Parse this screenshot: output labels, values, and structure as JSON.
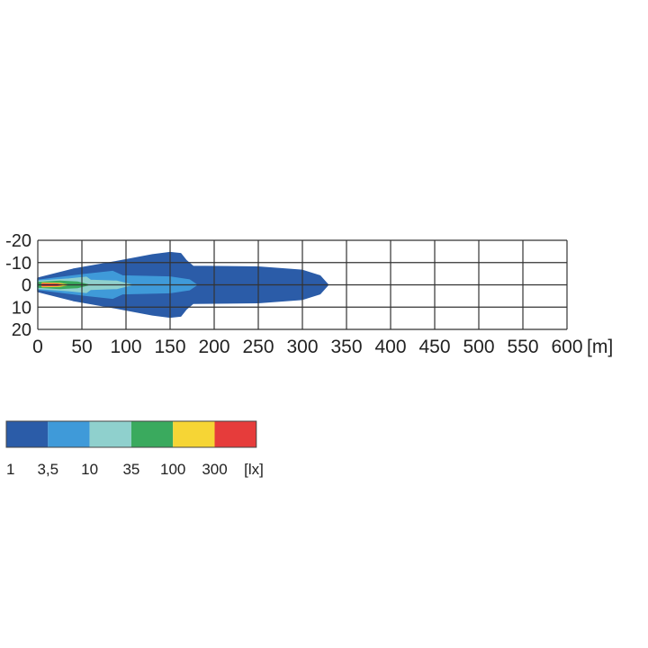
{
  "chart_data": {
    "type": "isolux-contour",
    "x_axis": {
      "range": [
        0,
        600
      ],
      "ticks": [
        "0",
        "50",
        "100",
        "150",
        "200",
        "250",
        "300",
        "350",
        "400",
        "450",
        "500",
        "550",
        "600"
      ],
      "unit": "[m]"
    },
    "y_axis": {
      "range": [
        -20,
        20
      ],
      "ticks": [
        "-20",
        "-10",
        "0",
        "10",
        "20"
      ]
    },
    "grid": true,
    "contours": [
      {
        "level": "1",
        "color": "#2b5ca8",
        "outline": [
          [
            0,
            3
          ],
          [
            40,
            7
          ],
          [
            90,
            10.5
          ],
          [
            130,
            13.5
          ],
          [
            150,
            14.5
          ],
          [
            162,
            14
          ],
          [
            168,
            11
          ],
          [
            176,
            8.3
          ],
          [
            250,
            8
          ],
          [
            300,
            6.5
          ],
          [
            320,
            4
          ],
          [
            329,
            0
          ]
        ]
      },
      {
        "level": "3,5",
        "color": "#3f9ad9",
        "outline": [
          [
            0,
            2
          ],
          [
            50,
            4.5
          ],
          [
            85,
            6
          ],
          [
            96,
            4
          ],
          [
            150,
            3.5
          ],
          [
            172,
            2.2
          ],
          [
            180,
            0
          ]
        ]
      },
      {
        "level": "10",
        "color": "#8fd0cd",
        "outline": [
          [
            0,
            1.6
          ],
          [
            35,
            2.6
          ],
          [
            55,
            3.4
          ],
          [
            60,
            2
          ],
          [
            90,
            1.6
          ],
          [
            106,
            0
          ]
        ]
      },
      {
        "level": "35",
        "color": "#3aaa5e",
        "outline": [
          [
            0,
            1
          ],
          [
            25,
            1.6
          ],
          [
            45,
            1.2
          ],
          [
            57,
            0
          ]
        ]
      },
      {
        "level": "100",
        "color": "#f6d535",
        "outline": [
          [
            5,
            0.8
          ],
          [
            25,
            0.6
          ],
          [
            33,
            0
          ]
        ]
      },
      {
        "level": "300",
        "color": "#e63c3b",
        "outline": [
          [
            5,
            0.4
          ],
          [
            22,
            0.3
          ],
          [
            27,
            0
          ]
        ]
      }
    ]
  },
  "legend": {
    "items": [
      {
        "label": "1",
        "color": "#2b5ca8"
      },
      {
        "label": "3,5",
        "color": "#3f9ad9"
      },
      {
        "label": "10",
        "color": "#8fd0cd"
      },
      {
        "label": "35",
        "color": "#3aaa5e"
      },
      {
        "label": "100",
        "color": "#f6d535"
      },
      {
        "label": "300",
        "color": "#e63c3b"
      }
    ],
    "unit": "[lx]"
  }
}
